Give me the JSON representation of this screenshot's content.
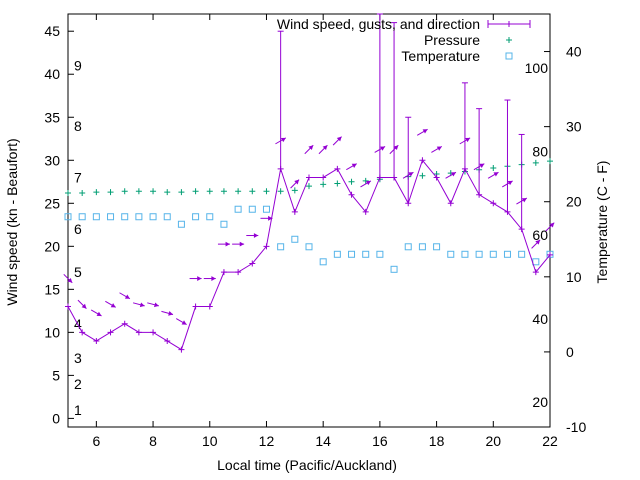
{
  "chart_data": {
    "type": "line",
    "title": "",
    "xlabel": "Local time (Pacific/Auckland)",
    "ylabel": "Wind speed (kn - Beaufort)",
    "y2label": "Temperature (C - F)",
    "xlim": [
      5,
      22
    ],
    "ylim": [
      -1,
      47
    ],
    "y2lim": [
      -10,
      45
    ],
    "grid": false,
    "legend_position": "top-right",
    "x_ticks": [
      6,
      8,
      10,
      12,
      14,
      16,
      18,
      20,
      22
    ],
    "y_ticks": [
      0,
      5,
      10,
      15,
      20,
      25,
      30,
      35,
      40,
      45
    ],
    "y2_ticks": [
      -10,
      0,
      10,
      20,
      30,
      40
    ],
    "beaufort_labels": [
      {
        "label": "1",
        "y": 1
      },
      {
        "label": "2",
        "y": 4
      },
      {
        "label": "3",
        "y": 7
      },
      {
        "label": "4",
        "y": 11
      },
      {
        "label": "5",
        "y": 17
      },
      {
        "label": "6",
        "y": 22
      },
      {
        "label": "7",
        "y": 28
      },
      {
        "label": "8",
        "y": 34
      },
      {
        "label": "9",
        "y": 41
      }
    ],
    "fahrenheit_labels": [
      {
        "label": "20",
        "temp": -6.7
      },
      {
        "label": "40",
        "temp": 4.4
      },
      {
        "label": "60",
        "temp": 15.6
      },
      {
        "label": "80",
        "temp": 26.7
      },
      {
        "label": "100",
        "temp": 37.8
      }
    ],
    "legend": [
      "Wind speed, gusts, and direction",
      "Pressure",
      "Temperature"
    ],
    "series": [
      {
        "name": "Wind speed, gusts, and direction",
        "color": "#9400d3",
        "points": [
          {
            "x": 5.0,
            "y": 13,
            "gust": 13,
            "dir": 135
          },
          {
            "x": 5.5,
            "y": 10,
            "gust": 10,
            "dir": 135
          },
          {
            "x": 6.0,
            "y": 9,
            "gust": 9,
            "dir": 120
          },
          {
            "x": 6.5,
            "y": 10,
            "gust": 10,
            "dir": 120
          },
          {
            "x": 7.0,
            "y": 11,
            "gust": 11,
            "dir": 120
          },
          {
            "x": 7.5,
            "y": 10,
            "gust": 10,
            "dir": 105
          },
          {
            "x": 8.0,
            "y": 10,
            "gust": 10,
            "dir": 105
          },
          {
            "x": 8.5,
            "y": 9,
            "gust": 9,
            "dir": 105
          },
          {
            "x": 9.0,
            "y": 8,
            "gust": 8,
            "dir": 120
          },
          {
            "x": 9.5,
            "y": 13,
            "gust": 13,
            "dir": 90
          },
          {
            "x": 10.0,
            "y": 13,
            "gust": 13,
            "dir": 90
          },
          {
            "x": 10.5,
            "y": 17,
            "gust": 17,
            "dir": 90
          },
          {
            "x": 11.0,
            "y": 17,
            "gust": 17,
            "dir": 90
          },
          {
            "x": 11.5,
            "y": 18,
            "gust": 18,
            "dir": 90
          },
          {
            "x": 12.0,
            "y": 20,
            "gust": 20,
            "dir": 90
          },
          {
            "x": 12.5,
            "y": 29,
            "gust": 45,
            "dir": 60
          },
          {
            "x": 13.0,
            "y": 24,
            "gust": 24,
            "dir": 45
          },
          {
            "x": 13.5,
            "y": 28,
            "gust": 28,
            "dir": 45
          },
          {
            "x": 14.0,
            "y": 28,
            "gust": 28,
            "dir": 45
          },
          {
            "x": 14.5,
            "y": 29,
            "gust": 29,
            "dir": 45
          },
          {
            "x": 15.0,
            "y": 26,
            "gust": 26,
            "dir": 60
          },
          {
            "x": 15.5,
            "y": 24,
            "gust": 24,
            "dir": 60
          },
          {
            "x": 16.0,
            "y": 28,
            "gust": 47,
            "dir": 60
          },
          {
            "x": 16.5,
            "y": 28,
            "gust": 46,
            "dir": 45
          },
          {
            "x": 17.0,
            "y": 25,
            "gust": 35,
            "dir": 60
          },
          {
            "x": 17.5,
            "y": 30,
            "gust": 30,
            "dir": 60
          },
          {
            "x": 18.0,
            "y": 28,
            "gust": 28,
            "dir": 60
          },
          {
            "x": 18.5,
            "y": 25,
            "gust": 25,
            "dir": 60
          },
          {
            "x": 19.0,
            "y": 29,
            "gust": 39,
            "dir": 60
          },
          {
            "x": 19.5,
            "y": 26,
            "gust": 36,
            "dir": 60
          },
          {
            "x": 20.0,
            "y": 25,
            "gust": 25,
            "dir": 60
          },
          {
            "x": 20.5,
            "y": 24,
            "gust": 37,
            "dir": 60
          },
          {
            "x": 21.0,
            "y": 22,
            "gust": 33,
            "dir": 60
          },
          {
            "x": 21.5,
            "y": 17,
            "gust": 17,
            "dir": 45
          },
          {
            "x": 22.0,
            "y": 19,
            "gust": 19,
            "dir": 45
          }
        ]
      },
      {
        "name": "Pressure",
        "color": "#009e73",
        "axis": "y",
        "x": [
          5.0,
          5.5,
          6.0,
          6.5,
          7.0,
          7.5,
          8.0,
          8.5,
          9.0,
          9.5,
          10.0,
          10.5,
          11.0,
          11.5,
          12.0,
          12.5,
          13.0,
          13.5,
          14.0,
          14.5,
          15.0,
          15.5,
          16.0,
          16.5,
          17.0,
          17.5,
          18.0,
          18.5,
          19.0,
          19.5,
          20.0,
          20.5,
          21.0,
          21.5,
          22.0
        ],
        "values": [
          26.2,
          26.2,
          26.3,
          26.3,
          26.4,
          26.4,
          26.4,
          26.3,
          26.3,
          26.4,
          26.4,
          26.4,
          26.4,
          26.4,
          26.4,
          26.4,
          26.5,
          27.0,
          27.2,
          27.3,
          27.5,
          27.6,
          27.8,
          28.0,
          28.1,
          28.2,
          28.4,
          28.5,
          28.7,
          28.9,
          29.1,
          29.3,
          29.5,
          29.7,
          29.9
        ]
      },
      {
        "name": "Temperature",
        "color": "#56b4e9",
        "axis": "y2",
        "x": [
          5.0,
          5.5,
          6.0,
          6.5,
          7.0,
          7.5,
          8.0,
          8.5,
          9.0,
          9.5,
          10.0,
          10.5,
          11.0,
          11.5,
          12.0,
          12.5,
          13.0,
          13.5,
          14.0,
          14.5,
          15.0,
          15.5,
          16.0,
          16.5,
          17.0,
          17.5,
          18.0,
          18.5,
          19.0,
          19.5,
          20.0,
          20.5,
          21.0,
          21.5,
          22.0
        ],
        "values": [
          18,
          18,
          18,
          18,
          18,
          18,
          18,
          18,
          17,
          18,
          18,
          17,
          19,
          19,
          19,
          14,
          15,
          14,
          12,
          13,
          13,
          13,
          13,
          11,
          14,
          14,
          14,
          13,
          13,
          13,
          13,
          13,
          13,
          12,
          13
        ]
      }
    ]
  }
}
